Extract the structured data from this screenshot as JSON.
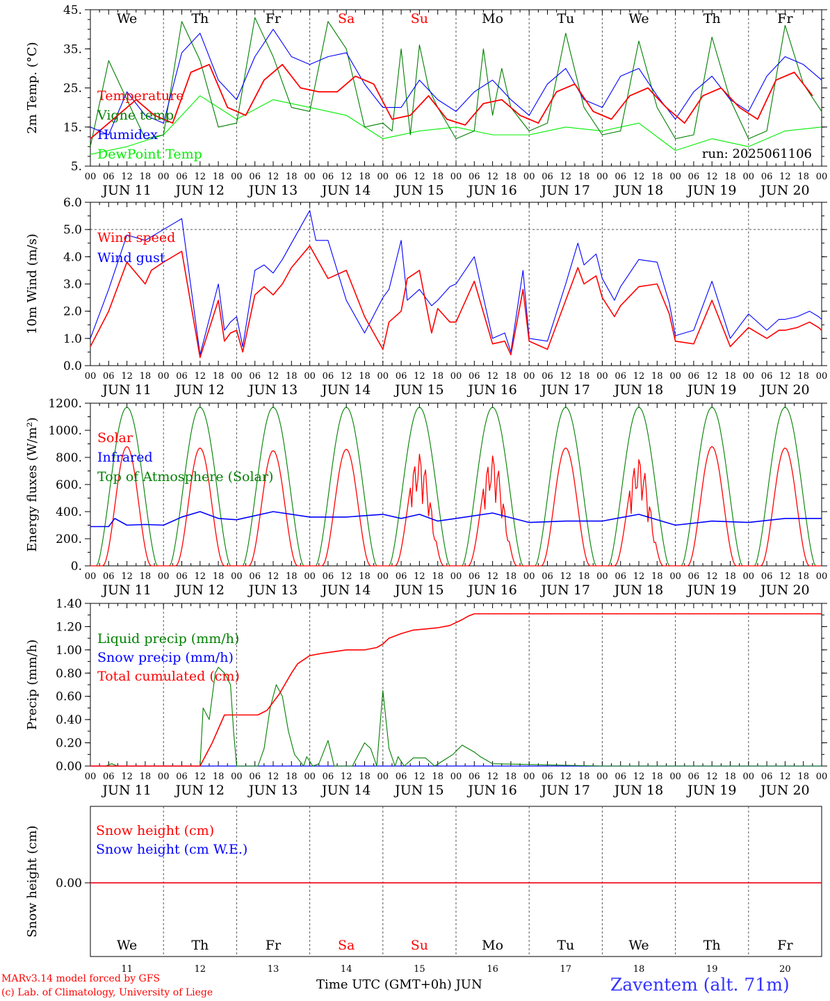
{
  "run_label": "run: 2025061106",
  "footer": {
    "credit_line1": "MARv3.14 model forced by GFS",
    "credit_line2": "(c) Lab. of Climatology, University of Liege",
    "x_title": "Time UTC (GMT+0h) JUN",
    "station": "Zaventem (alt. 71m)"
  },
  "colors": {
    "red": "#ff0000",
    "blue": "#0000ff",
    "green": "#007f00",
    "lightgreen": "#00ee00"
  },
  "days": {
    "weekdays": [
      "We",
      "Th",
      "Fr",
      "Sa",
      "Su",
      "Mo",
      "Tu",
      "We",
      "Th",
      "Fr"
    ],
    "weekend_flags": [
      false,
      false,
      false,
      true,
      true,
      false,
      false,
      false,
      false,
      false
    ],
    "dates": [
      "11",
      "12",
      "13",
      "14",
      "15",
      "16",
      "17",
      "18",
      "19",
      "20"
    ],
    "date_labels": [
      "JUN 11",
      "JUN 12",
      "JUN 13",
      "JUN 14",
      "JUN 15",
      "JUN 16",
      "JUN 17",
      "JUN 18",
      "JUN 19",
      "JUN 20"
    ],
    "hour_labels": [
      "00",
      "06",
      "12",
      "18"
    ],
    "final_hour_label": "00"
  },
  "chart_data": [
    {
      "type": "line",
      "ylabel": "2m Temp. (°C)",
      "ylim": [
        5,
        45
      ],
      "yticks": [
        "5.",
        "15.",
        "25.",
        "35.",
        "45."
      ],
      "x_unit": "hours since 2025-06-11 00 UTC",
      "legend": [
        "Temperature",
        "Vigne temp",
        "Humidex",
        "DewPoint Temp"
      ],
      "series": [
        {
          "name": "Temperature",
          "color": "#ff0000",
          "x": [
            0,
            9,
            15,
            21,
            27,
            33,
            39,
            45,
            51,
            57,
            63,
            69,
            75,
            81,
            87,
            93,
            99,
            105,
            111,
            117,
            123,
            129,
            135,
            141,
            147,
            153,
            159,
            165,
            171,
            177,
            183,
            189,
            195,
            201,
            207,
            213,
            219,
            225,
            231,
            237
          ],
          "y": [
            12,
            18,
            22,
            18,
            16,
            29,
            31,
            20,
            18,
            27,
            31,
            25,
            24,
            24,
            28,
            26,
            17,
            18,
            23,
            17,
            15.5,
            21,
            22,
            18,
            16,
            24,
            26,
            19,
            17,
            23,
            25,
            20,
            16,
            23,
            25,
            20,
            17,
            27,
            29,
            23
          ]
        },
        {
          "name": "Vigne temp",
          "color": "#007f00",
          "x": [
            0,
            6,
            12,
            18,
            24,
            30,
            36,
            42,
            48,
            54,
            60,
            66,
            72,
            78,
            84,
            90,
            96,
            99,
            102,
            105,
            108,
            111,
            114,
            120,
            126,
            129,
            132,
            135,
            138,
            144,
            150,
            156,
            162,
            168,
            174,
            180,
            186,
            192,
            198,
            204,
            210,
            216,
            222,
            228,
            234,
            240
          ],
          "y": [
            10,
            32,
            22,
            12,
            13,
            42,
            32,
            15,
            16,
            43,
            33,
            20,
            19,
            42,
            35,
            15,
            16,
            14,
            35,
            13,
            36,
            25,
            20,
            12,
            14,
            35,
            18,
            30,
            20,
            14,
            16,
            39,
            20,
            13,
            14,
            37,
            20,
            12,
            13,
            38,
            22,
            12,
            14,
            41,
            26,
            19
          ]
        },
        {
          "name": "Humidex",
          "color": "#0000ff",
          "x": [
            0,
            6,
            12,
            18,
            24,
            30,
            36,
            42,
            48,
            54,
            60,
            66,
            72,
            78,
            84,
            90,
            96,
            102,
            108,
            114,
            120,
            126,
            132,
            138,
            144,
            150,
            156,
            162,
            168,
            174,
            180,
            186,
            192,
            198,
            204,
            210,
            216,
            222,
            228,
            234,
            240
          ],
          "y": [
            15,
            13,
            24,
            18,
            16,
            34,
            39,
            27,
            22,
            33,
            40,
            33,
            31,
            33,
            34,
            26,
            20,
            20,
            27,
            22,
            19,
            24,
            27,
            22,
            18,
            26,
            30,
            22,
            20,
            28,
            30,
            23,
            17,
            24,
            28,
            22,
            19,
            28,
            33,
            31,
            27
          ]
        },
        {
          "name": "DewPoint Temp",
          "color": "#00ee00",
          "x": [
            0,
            12,
            24,
            36,
            48,
            60,
            72,
            84,
            96,
            108,
            120,
            132,
            144,
            156,
            168,
            180,
            192,
            204,
            216,
            228,
            240
          ],
          "y": [
            8,
            10,
            13,
            23,
            17,
            22,
            20,
            18,
            12,
            14,
            15,
            13,
            13,
            15,
            14,
            16,
            9,
            12,
            10,
            14,
            15
          ]
        }
      ]
    },
    {
      "type": "line",
      "ylabel": "10m Wind (m/s)",
      "ylim": [
        0,
        6
      ],
      "yticks": [
        "0.0",
        "1.0",
        "2.0",
        "3.0",
        "4.0",
        "5.0",
        "6.0"
      ],
      "legend": [
        "Wind speed",
        "Wind gust"
      ],
      "series": [
        {
          "name": "Wind speed",
          "color": "#ff0000",
          "x": [
            0,
            6,
            12,
            18,
            20,
            24,
            30,
            36,
            42,
            44,
            46,
            48,
            50,
            54,
            57,
            60,
            63,
            66,
            72,
            78,
            84,
            90,
            96,
            98,
            102,
            104,
            108,
            112,
            114,
            118,
            120,
            126,
            132,
            136,
            138,
            142,
            144,
            150,
            156,
            160,
            162,
            166,
            168,
            172,
            174,
            180,
            186,
            190,
            192,
            198,
            204,
            210,
            216,
            222,
            226,
            228,
            232,
            234,
            236,
            239,
            240
          ],
          "y": [
            0.7,
            2.0,
            3.8,
            3.0,
            3.5,
            3.8,
            4.2,
            0.3,
            2.4,
            0.9,
            1.2,
            1.3,
            0.5,
            2.6,
            2.9,
            2.6,
            3.0,
            3.6,
            4.4,
            3.2,
            3.5,
            1.8,
            0.6,
            1.6,
            2.0,
            3.2,
            3.5,
            1.2,
            2.1,
            1.6,
            1.6,
            3.1,
            0.8,
            0.9,
            0.4,
            2.8,
            0.9,
            0.6,
            2.4,
            3.6,
            3.0,
            3.3,
            2.5,
            1.8,
            2.2,
            2.9,
            3.0,
            1.9,
            0.9,
            0.8,
            2.4,
            0.7,
            1.4,
            1.0,
            1.3,
            1.3,
            1.4,
            1.5,
            1.6,
            1.4,
            1.3
          ]
        },
        {
          "name": "Wind gust",
          "color": "#0000ff",
          "x": [
            0,
            6,
            12,
            18,
            24,
            30,
            36,
            42,
            44,
            46,
            48,
            50,
            54,
            57,
            60,
            63,
            66,
            72,
            74,
            78,
            84,
            90,
            96,
            98,
            102,
            104,
            108,
            112,
            114,
            118,
            120,
            126,
            132,
            136,
            138,
            142,
            144,
            150,
            156,
            160,
            162,
            166,
            168,
            172,
            174,
            180,
            186,
            190,
            192,
            198,
            204,
            210,
            216,
            222,
            226,
            228,
            232,
            234,
            236,
            239,
            240
          ],
          "y": [
            1.0,
            2.8,
            4.8,
            4.6,
            5.0,
            5.4,
            0.4,
            3.0,
            1.3,
            1.6,
            1.8,
            0.7,
            3.5,
            3.7,
            3.4,
            3.9,
            4.5,
            5.7,
            4.6,
            4.6,
            2.4,
            1.2,
            2.5,
            2.8,
            4.6,
            2.4,
            2.8,
            2.2,
            2.4,
            2.9,
            3.0,
            4.0,
            1.0,
            1.2,
            0.5,
            3.5,
            1.0,
            0.9,
            3.0,
            4.5,
            3.7,
            4.1,
            3.2,
            2.4,
            2.9,
            3.9,
            3.8,
            2.3,
            1.1,
            1.3,
            3.1,
            1.0,
            1.9,
            1.3,
            1.7,
            1.7,
            1.8,
            1.9,
            2.0,
            1.8,
            1.7
          ]
        }
      ]
    },
    {
      "type": "line",
      "ylabel": "Energy fluxes (W/m²)",
      "ylim": [
        0,
        1200
      ],
      "yticks": [
        "0.",
        "200.",
        "400.",
        "600.",
        "800.",
        "1000.",
        "1200."
      ],
      "legend": [
        "Solar",
        "Infrared",
        "Top of Atmosphere (Solar)"
      ],
      "series": [
        {
          "name": "Solar",
          "color": "#ff0000",
          "peaks": [
            880,
            870,
            850,
            860,
            830,
            820,
            870,
            800,
            880,
            870
          ],
          "peak_hour_utc": 12,
          "sunrise_hour_utc": 4,
          "sunset_hour_utc": 20
        },
        {
          "name": "Infrared",
          "color": "#0000ff",
          "x": [
            0,
            6,
            8,
            12,
            18,
            24,
            30,
            36,
            42,
            48,
            60,
            72,
            84,
            96,
            102,
            108,
            114,
            120,
            132,
            144,
            156,
            168,
            180,
            192,
            204,
            216,
            228,
            240
          ],
          "y": [
            290,
            290,
            350,
            300,
            305,
            300,
            360,
            400,
            350,
            340,
            400,
            360,
            360,
            380,
            350,
            380,
            330,
            350,
            390,
            320,
            330,
            330,
            380,
            300,
            330,
            320,
            350,
            350
          ]
        },
        {
          "name": "Top of Atmosphere (Solar)",
          "color": "#007f00",
          "peak": 1170,
          "sunrise_hour_utc": 2,
          "sunset_hour_utc": 22
        }
      ]
    },
    {
      "type": "line",
      "ylabel": "Precip (mm/h)",
      "ylim": [
        0,
        1.4
      ],
      "yticks": [
        "0.00",
        "0.20",
        "0.40",
        "0.60",
        "0.80",
        "1.00",
        "1.20",
        "1.40"
      ],
      "legend": [
        "Liquid precip (mm/h)",
        "Snow precip (mm/h)",
        "Total cumulated (cm)"
      ],
      "series": [
        {
          "name": "Liquid precip (mm/h)",
          "color": "#007f00",
          "x": [
            0,
            5,
            7,
            9,
            36,
            37,
            39,
            41,
            42,
            44,
            46,
            47,
            48,
            55,
            57,
            59,
            61,
            63,
            65,
            67,
            70,
            71,
            73,
            75,
            78,
            80,
            82,
            86,
            90,
            92,
            94,
            96,
            98,
            100,
            101,
            103,
            106,
            110,
            113,
            116,
            119,
            122,
            124,
            126,
            128,
            130,
            132,
            168,
            240
          ],
          "y": [
            0,
            0,
            0.02,
            0,
            0,
            0.5,
            0.4,
            0.8,
            0.85,
            0.8,
            0.7,
            0.3,
            0,
            0,
            0.15,
            0.5,
            0.7,
            0.6,
            0.3,
            0.1,
            0,
            0.08,
            0,
            0.02,
            0.22,
            0,
            0,
            0,
            0.2,
            0.15,
            0,
            0.65,
            0.15,
            0,
            0.08,
            0,
            0.07,
            0.07,
            0,
            0.05,
            0.1,
            0.18,
            0.15,
            0.12,
            0.08,
            0.05,
            0.02,
            0,
            0
          ]
        },
        {
          "name": "Snow precip (mm/h)",
          "color": "#0000ff",
          "x": [
            0,
            240
          ],
          "y": [
            0,
            0
          ]
        },
        {
          "name": "Total cumulated (cm)",
          "color": "#ff0000",
          "x": [
            0,
            36,
            40,
            44,
            48,
            55,
            58,
            62,
            66,
            68,
            72,
            76,
            84,
            90,
            94,
            96,
            98,
            102,
            106,
            110,
            114,
            118,
            122,
            124,
            126,
            128,
            240
          ],
          "y": [
            0,
            0,
            0.2,
            0.44,
            0.44,
            0.44,
            0.48,
            0.62,
            0.8,
            0.88,
            0.95,
            0.97,
            1.0,
            1.0,
            1.02,
            1.05,
            1.1,
            1.14,
            1.17,
            1.18,
            1.19,
            1.21,
            1.26,
            1.29,
            1.31,
            1.31,
            1.31
          ]
        }
      ]
    },
    {
      "type": "line",
      "ylabel": "Snow height (cm)",
      "yticks": [
        "0.00"
      ],
      "legend": [
        "Snow height (cm)",
        "Snow height (cm W.E.)"
      ],
      "series": [
        {
          "name": "Snow height (cm)",
          "color": "#ff0000",
          "x": [
            0,
            240
          ],
          "y": [
            0,
            0
          ]
        },
        {
          "name": "Snow height (cm W.E.)",
          "color": "#0000ff",
          "x": [
            0,
            240
          ],
          "y": [
            0,
            0
          ]
        }
      ]
    }
  ]
}
